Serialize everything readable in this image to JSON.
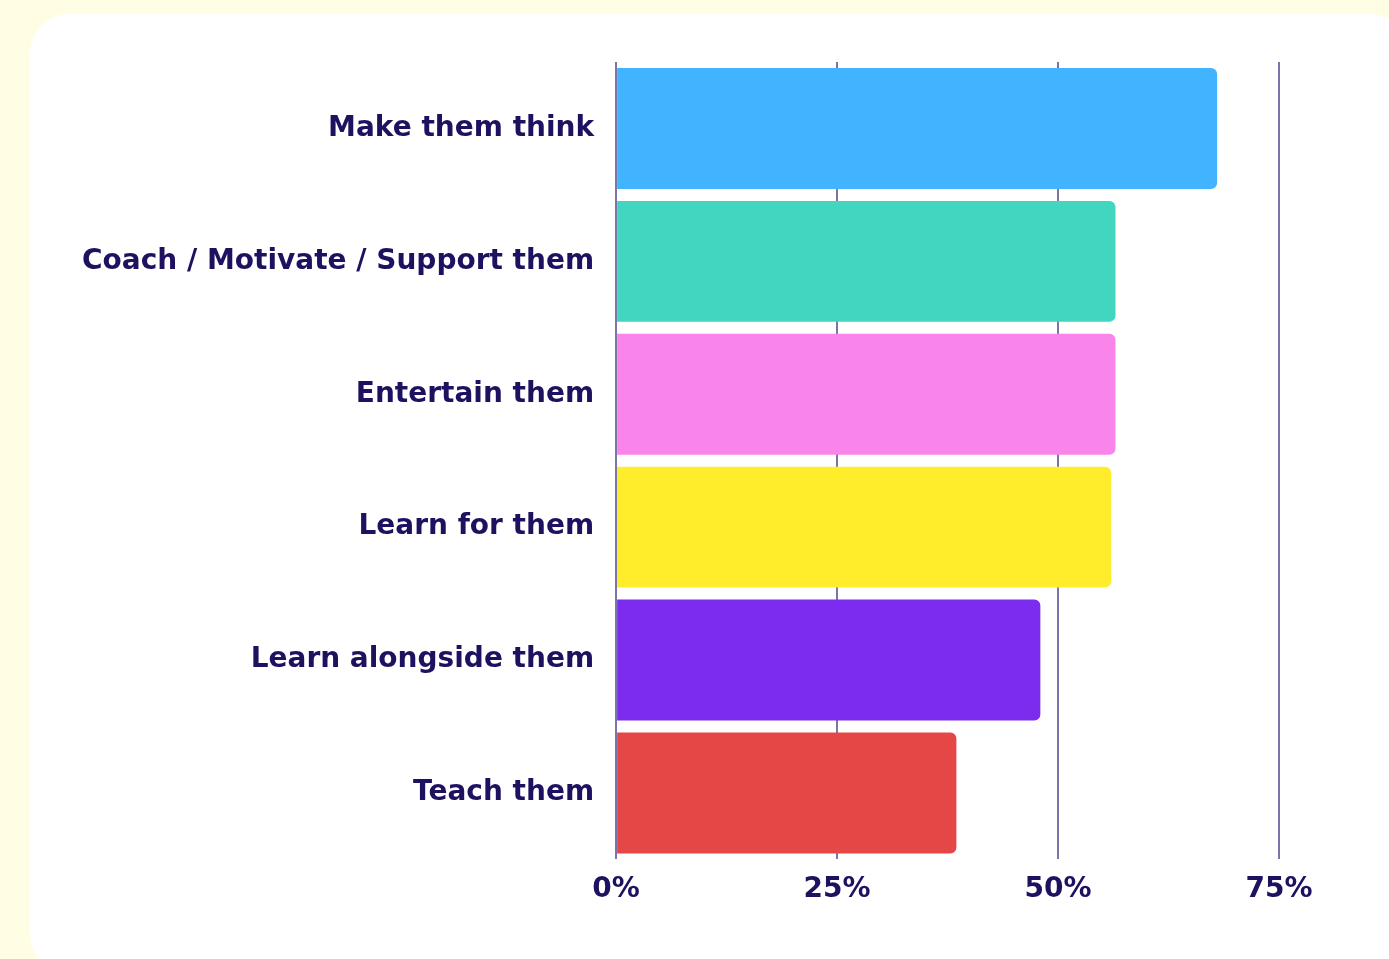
{
  "chart_data": {
    "type": "bar",
    "orientation": "horizontal",
    "categories": [
      "Make them think",
      "Coach / Motivate / Support them",
      "Entertain them",
      "Learn for them",
      "Learn alongside them",
      "Teach them"
    ],
    "values": [
      68,
      56.5,
      56.5,
      56,
      48,
      38.5
    ],
    "colors": [
      "#42b4ff",
      "#42d6c0",
      "#f984ea",
      "#ffec2b",
      "#7b2cef",
      "#e54747"
    ],
    "xlim": [
      0,
      75
    ],
    "xticks": [
      {
        "value": 0,
        "label": "0%"
      },
      {
        "value": 25,
        "label": "25%"
      },
      {
        "value": 50,
        "label": "50%"
      },
      {
        "value": 75,
        "label": "75%"
      }
    ],
    "grid": "x",
    "legend": false
  }
}
